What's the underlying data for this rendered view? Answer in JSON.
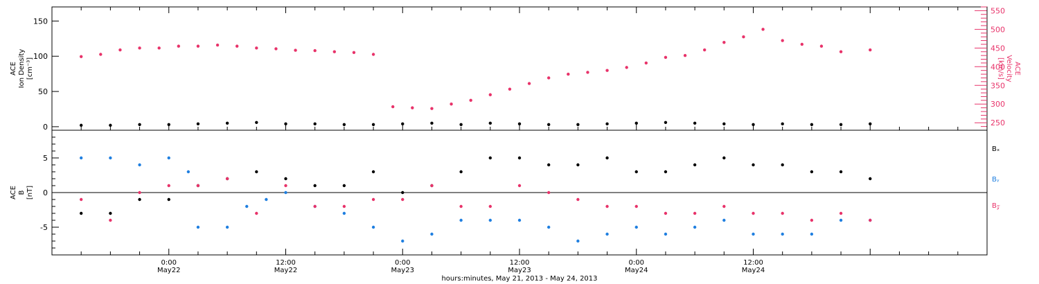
{
  "colors": {
    "black": "#000000",
    "pink": "#e8336a",
    "blue": "#1f7fe0"
  },
  "chart_data": [
    {
      "type": "scatter",
      "panel": "top",
      "ylabel_left": [
        "ACE",
        "Ion Density",
        "[cm⁻³]"
      ],
      "ylabel_right": [
        "ACE",
        "Velocity",
        "[km/s]"
      ],
      "ylim_left": [
        -5,
        170
      ],
      "ylim_right": [
        230,
        560
      ],
      "yticks_left": [
        0,
        50,
        100,
        150
      ],
      "yticks_right": [
        250,
        300,
        350,
        400,
        450,
        500,
        550
      ],
      "series": [
        {
          "name": "ACE Ion Density",
          "axis": "left",
          "color": "#000000",
          "points": [
            [
              -9,
              2
            ],
            [
              -6,
              2
            ],
            [
              -3,
              3
            ],
            [
              0,
              3
            ],
            [
              3,
              4
            ],
            [
              6,
              5
            ],
            [
              9,
              6
            ],
            [
              12,
              4
            ],
            [
              15,
              4
            ],
            [
              18,
              3
            ],
            [
              21,
              3
            ],
            [
              24,
              4
            ],
            [
              27,
              5
            ],
            [
              30,
              3
            ],
            [
              33,
              5
            ],
            [
              36,
              4
            ],
            [
              39,
              3
            ],
            [
              42,
              3
            ],
            [
              45,
              4
            ],
            [
              48,
              5
            ],
            [
              51,
              6
            ],
            [
              54,
              5
            ],
            [
              57,
              4
            ],
            [
              60,
              3
            ],
            [
              63,
              4
            ],
            [
              66,
              3
            ],
            [
              69,
              3
            ],
            [
              72,
              4
            ]
          ]
        },
        {
          "name": "ACE Velocity",
          "axis": "right",
          "color": "#e8336a",
          "points": [
            [
              -9,
              427
            ],
            [
              -7,
              433
            ],
            [
              -5,
              445
            ],
            [
              -3,
              450
            ],
            [
              -1,
              450
            ],
            [
              1,
              455
            ],
            [
              3,
              455
            ],
            [
              5,
              458
            ],
            [
              7,
              455
            ],
            [
              9,
              450
            ],
            [
              11,
              448
            ],
            [
              13,
              444
            ],
            [
              15,
              443
            ],
            [
              17,
              440
            ],
            [
              19,
              438
            ],
            [
              21,
              433
            ],
            [
              23,
              293
            ],
            [
              25,
              290
            ],
            [
              27,
              288
            ],
            [
              29,
              300
            ],
            [
              31,
              310
            ],
            [
              33,
              325
            ],
            [
              35,
              340
            ],
            [
              37,
              355
            ],
            [
              39,
              370
            ],
            [
              41,
              380
            ],
            [
              43,
              385
            ],
            [
              45,
              390
            ],
            [
              47,
              398
            ],
            [
              49,
              410
            ],
            [
              51,
              425
            ],
            [
              53,
              430
            ],
            [
              55,
              445
            ],
            [
              57,
              465
            ],
            [
              59,
              480
            ],
            [
              61,
              500
            ],
            [
              63,
              470
            ],
            [
              65,
              460
            ],
            [
              67,
              455
            ],
            [
              69,
              440
            ],
            [
              72,
              445
            ]
          ]
        }
      ]
    },
    {
      "type": "scatter",
      "panel": "bottom",
      "ylabel_left": [
        "ACE",
        "B",
        "[nT]"
      ],
      "ylim": [
        -9,
        9
      ],
      "yticks": [
        -5,
        0,
        5
      ],
      "legend": [
        "Bₓ",
        "Bᵧ",
        "B𝓏"
      ],
      "legend_placement": "right",
      "series": [
        {
          "name": "Bₓ",
          "color": "#000000",
          "points": [
            [
              -9,
              -3
            ],
            [
              -6,
              -3
            ],
            [
              -3,
              -1
            ],
            [
              0,
              -1
            ],
            [
              3,
              1
            ],
            [
              6,
              2
            ],
            [
              9,
              3
            ],
            [
              12,
              2
            ],
            [
              15,
              1
            ],
            [
              18,
              1
            ],
            [
              21,
              3
            ],
            [
              24,
              0
            ],
            [
              27,
              1
            ],
            [
              30,
              3
            ],
            [
              33,
              5
            ],
            [
              36,
              5
            ],
            [
              39,
              4
            ],
            [
              42,
              4
            ],
            [
              45,
              5
            ],
            [
              48,
              3
            ],
            [
              51,
              3
            ],
            [
              54,
              4
            ],
            [
              57,
              5
            ],
            [
              60,
              4
            ],
            [
              63,
              4
            ],
            [
              66,
              3
            ],
            [
              69,
              3
            ],
            [
              72,
              2
            ]
          ]
        },
        {
          "name": "Bᵧ",
          "color": "#1f7fe0",
          "points": [
            [
              -9,
              5
            ],
            [
              -6,
              5
            ],
            [
              -3,
              4
            ],
            [
              0,
              5
            ],
            [
              2,
              3
            ],
            [
              3,
              -5
            ],
            [
              6,
              -5
            ],
            [
              8,
              -2
            ],
            [
              10,
              -1
            ],
            [
              12,
              0
            ],
            [
              15,
              -2
            ],
            [
              18,
              -3
            ],
            [
              21,
              -5
            ],
            [
              24,
              -7
            ],
            [
              27,
              -6
            ],
            [
              30,
              -4
            ],
            [
              33,
              -4
            ],
            [
              36,
              -4
            ],
            [
              39,
              -5
            ],
            [
              42,
              -7
            ],
            [
              45,
              -6
            ],
            [
              48,
              -5
            ],
            [
              51,
              -6
            ],
            [
              54,
              -5
            ],
            [
              57,
              -4
            ],
            [
              60,
              -6
            ],
            [
              63,
              -6
            ],
            [
              66,
              -6
            ],
            [
              69,
              -4
            ],
            [
              72,
              -4
            ]
          ]
        },
        {
          "name": "B𝓏",
          "color": "#e8336a",
          "points": [
            [
              -9,
              -1
            ],
            [
              -6,
              -4
            ],
            [
              -3,
              0
            ],
            [
              0,
              1
            ],
            [
              3,
              1
            ],
            [
              6,
              2
            ],
            [
              9,
              -3
            ],
            [
              12,
              1
            ],
            [
              15,
              -2
            ],
            [
              18,
              -2
            ],
            [
              21,
              -1
            ],
            [
              24,
              -1
            ],
            [
              27,
              1
            ],
            [
              30,
              -2
            ],
            [
              33,
              -2
            ],
            [
              36,
              1
            ],
            [
              39,
              0
            ],
            [
              42,
              -1
            ],
            [
              45,
              -2
            ],
            [
              48,
              -2
            ],
            [
              51,
              -3
            ],
            [
              54,
              -3
            ],
            [
              57,
              -2
            ],
            [
              60,
              -3
            ],
            [
              63,
              -3
            ],
            [
              66,
              -4
            ],
            [
              69,
              -3
            ],
            [
              72,
              -4
            ]
          ]
        }
      ]
    }
  ],
  "xaxis": {
    "xlim_hours_from_may22": [
      -12,
      84
    ],
    "ticks": [
      {
        "h": 0,
        "label1": "0:00",
        "label2": "May22"
      },
      {
        "h": 12,
        "label1": "12:00",
        "label2": "May22"
      },
      {
        "h": 24,
        "label1": "0:00",
        "label2": "May23"
      },
      {
        "h": 36,
        "label1": "12:00",
        "label2": "May23"
      },
      {
        "h": 48,
        "label1": "0:00",
        "label2": "May24"
      },
      {
        "h": 60,
        "label1": "12:00",
        "label2": "May24"
      }
    ],
    "label": "hours:minutes, May 21, 2013 - May 24, 2013"
  }
}
